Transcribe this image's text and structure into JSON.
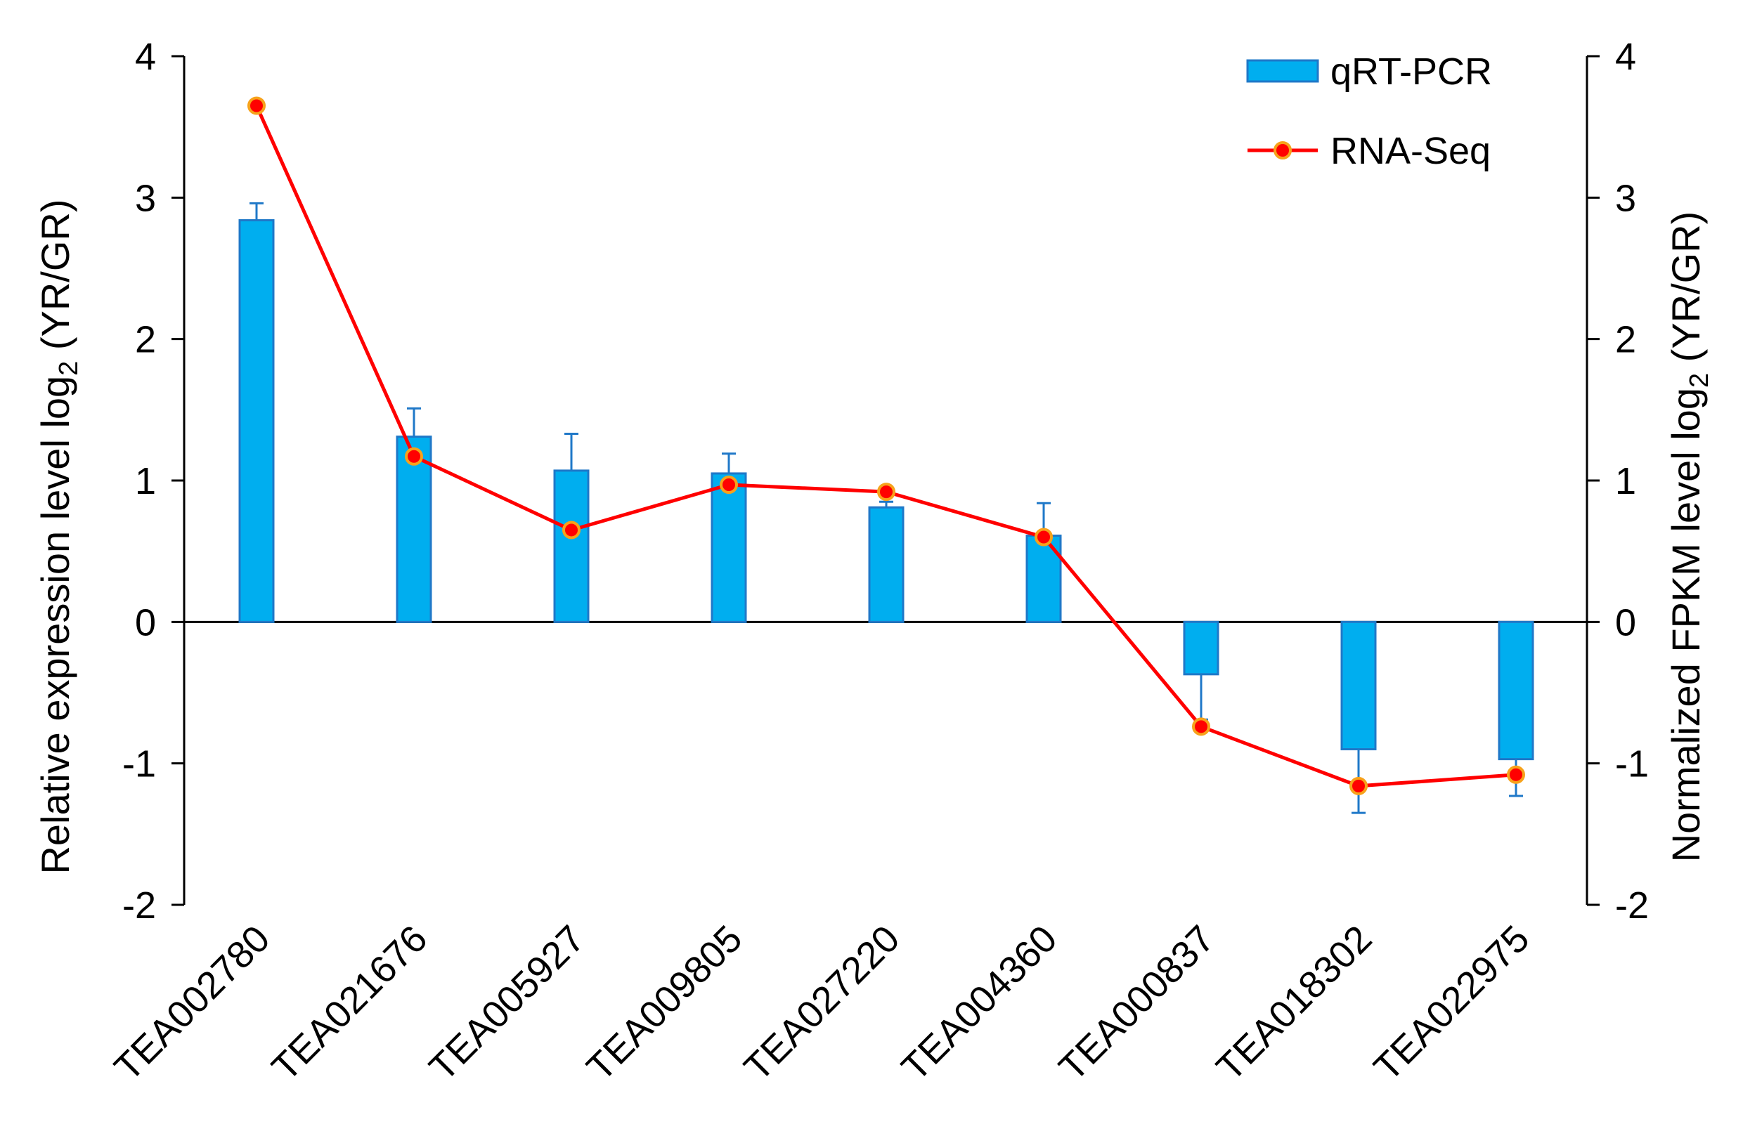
{
  "chart_data": {
    "type": "bar+line",
    "categories": [
      "TEA002780",
      "TEA021676",
      "TEA005927",
      "TEA009805",
      "TEA027220",
      "TEA004360",
      "TEA000837",
      "TEA018302",
      "TEA022975"
    ],
    "series": [
      {
        "name": "qRT-PCR",
        "kind": "bar",
        "axis": "left",
        "values": [
          2.84,
          1.31,
          1.07,
          1.05,
          0.81,
          0.61,
          -0.37,
          -0.9,
          -0.97
        ],
        "errors": [
          0.12,
          0.2,
          0.26,
          0.14,
          0.04,
          0.23,
          0.32,
          0.45,
          0.26
        ]
      },
      {
        "name": "RNA-Seq",
        "kind": "line",
        "axis": "right",
        "values": [
          3.65,
          1.17,
          0.65,
          0.97,
          0.92,
          0.6,
          -0.74,
          -1.16,
          -1.08
        ]
      }
    ],
    "ylabel_left": {
      "main": "Relative expression level log",
      "sub": "2",
      "tail": " (YR/GR)"
    },
    "ylabel_right": {
      "main": "Normalized FPKM level log",
      "sub": "2",
      "tail": " (YR/GR)"
    },
    "ylim": [
      -2,
      4
    ],
    "yticks": [
      -2,
      -1,
      0,
      1,
      2,
      3,
      4
    ],
    "legend_position": "top-right",
    "colors": {
      "bar_fill": "#00AEEF",
      "bar_edge": "#1F78C8",
      "error_bar": "#1F78C8",
      "line": "#FF0000",
      "marker_fill": "#FF0000",
      "marker_edge": "#F7A21B",
      "axis": "#000000"
    }
  }
}
